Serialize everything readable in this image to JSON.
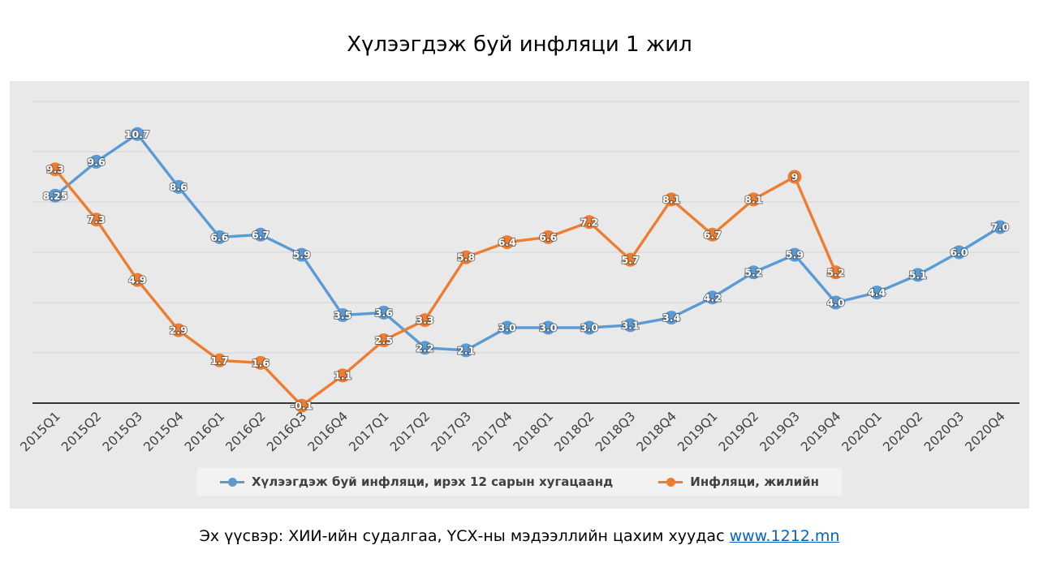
{
  "page": {
    "title": "Хүлээгдэж буй инфляци 1 жил",
    "source_prefix": "Эх үүсвэр: ХИИ-ийн судалгаа, ҮСХ-ны мэдээллийн цахим хуудас ",
    "source_link": "www.1212.mn",
    "link_color": "#0563C1",
    "plot_background": "#e9e9e9"
  },
  "legend": {
    "position": "bottom",
    "items": [
      {
        "label": "Хүлээгдэж буй инфляци, ирэх 12 сарын хугацаанд",
        "color": "#5B9BD5"
      },
      {
        "label": "Инфляци, жилийн",
        "color": "#ED7D31"
      }
    ]
  },
  "chart_data": {
    "type": "line",
    "title": "Хүлээгдэж буй инфляци 1 жил",
    "xlabel": "",
    "ylabel": "",
    "ylim": [
      -1,
      12
    ],
    "grid": true,
    "legend_position": "bottom",
    "categories": [
      "2015Q1",
      "2015Q2",
      "2015Q3",
      "2015Q4",
      "2016Q1",
      "2016Q2",
      "2016Q3",
      "2016Q4",
      "2017Q1",
      "2017Q2",
      "2017Q3",
      "2017Q4",
      "2018Q1",
      "2018Q2",
      "2018Q3",
      "2018Q4",
      "2019Q1",
      "2019Q2",
      "2019Q3",
      "2019Q4",
      "2020Q1",
      "2020Q2",
      "2020Q3",
      "2020Q4"
    ],
    "series": [
      {
        "name": "Хүлээгдэж буй инфляци, ирэх 12 сарын хугацаанд",
        "color": "#5B9BD5",
        "values": [
          8.25,
          9.6,
          10.7,
          8.6,
          6.6,
          6.7,
          5.9,
          3.5,
          3.6,
          2.2,
          2.1,
          3.0,
          3.0,
          3.0,
          3.1,
          3.4,
          4.2,
          5.2,
          5.9,
          4.0,
          4.4,
          5.1,
          6.0,
          7.0
        ],
        "labels": [
          "8.25",
          "9.6",
          "10.7",
          "8.6",
          "6.6",
          "6.7",
          "5.9",
          "3.5",
          "3.6",
          "2.2",
          "2.1",
          "3.0",
          "3.0",
          "3.0",
          "3.1",
          "3.4",
          "4.2",
          "5.2",
          "5.9",
          "4.0",
          "4.4",
          "5.1",
          "6.0",
          "7.0"
        ]
      },
      {
        "name": "Инфляци, жилийн",
        "color": "#ED7D31",
        "values": [
          9.3,
          7.3,
          4.9,
          2.9,
          1.7,
          1.6,
          -0.1,
          1.1,
          2.5,
          3.3,
          5.8,
          6.4,
          6.6,
          7.2,
          5.7,
          8.1,
          6.7,
          8.1,
          9,
          5.2,
          null,
          null,
          null,
          null
        ],
        "labels": [
          "9.3",
          "7.3",
          "4.9",
          "2.9",
          "1.7",
          "1.6",
          "-0.1",
          "1.1",
          "2.5",
          "3.3",
          "5.8",
          "6.4",
          "6.6",
          "7.2",
          "5.7",
          "8.1",
          "6.7",
          "8.1",
          "9",
          "5.2",
          "",
          "",
          "",
          ""
        ]
      }
    ]
  }
}
